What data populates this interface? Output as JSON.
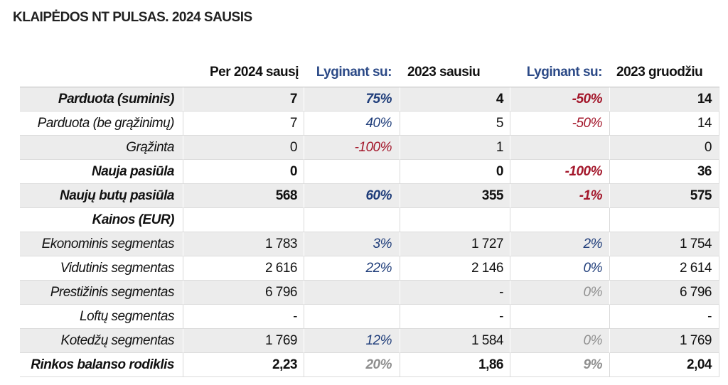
{
  "colors": {
    "value_blue": "#1f3d7a",
    "header_blue": "#2c4a87",
    "value_red": "#a3162a",
    "value_grey": "#8f8f8f",
    "row_shade": "#ececec"
  },
  "chart_data": {
    "type": "table",
    "title": "KLAIPĖDOS NT PULSAS. 2024 SAUSIS",
    "columns": [
      "Per 2024 sausį",
      "Lyginant su:",
      "2023 sausiu",
      "Lyginant su:",
      "2023 gruodžiu"
    ],
    "rows": [
      {
        "label": "Parduota (suminis)",
        "values": [
          "7",
          "75%",
          "4",
          "-50%",
          "14"
        ]
      },
      {
        "label": "Parduota (be grąžinimų)",
        "values": [
          "7",
          "40%",
          "5",
          "-50%",
          "14"
        ]
      },
      {
        "label": "Grąžinta",
        "values": [
          "0",
          "-100%",
          "1",
          "",
          "0"
        ]
      },
      {
        "label": "Nauja pasiūla",
        "values": [
          "0",
          "",
          "0",
          "-100%",
          "36"
        ]
      },
      {
        "label": "Naujų butų pasiūla",
        "values": [
          "568",
          "60%",
          "355",
          "-1%",
          "575"
        ]
      },
      {
        "label": "Kainos (EUR)",
        "values": [
          "",
          "",
          "",
          "",
          ""
        ]
      },
      {
        "label": "Ekonominis segmentas",
        "values": [
          "1 783",
          "3%",
          "1 727",
          "2%",
          "1 754"
        ]
      },
      {
        "label": "Vidutinis segmentas",
        "values": [
          "2 616",
          "22%",
          "2 146",
          "0%",
          "2 614"
        ]
      },
      {
        "label": "Prestižinis segmentas",
        "values": [
          "6 796",
          "",
          "-",
          "0%",
          "6 796"
        ]
      },
      {
        "label": "Loftų segmentas",
        "values": [
          "-",
          "",
          "-",
          "",
          "-"
        ]
      },
      {
        "label": "Kotedžų segmentas",
        "values": [
          "1 769",
          "12%",
          "1 584",
          "0%",
          "1 769"
        ]
      },
      {
        "label": "Rinkos balanso rodiklis",
        "values": [
          "2,23",
          "20%",
          "1,86",
          "9%",
          "2,04"
        ]
      }
    ]
  }
}
